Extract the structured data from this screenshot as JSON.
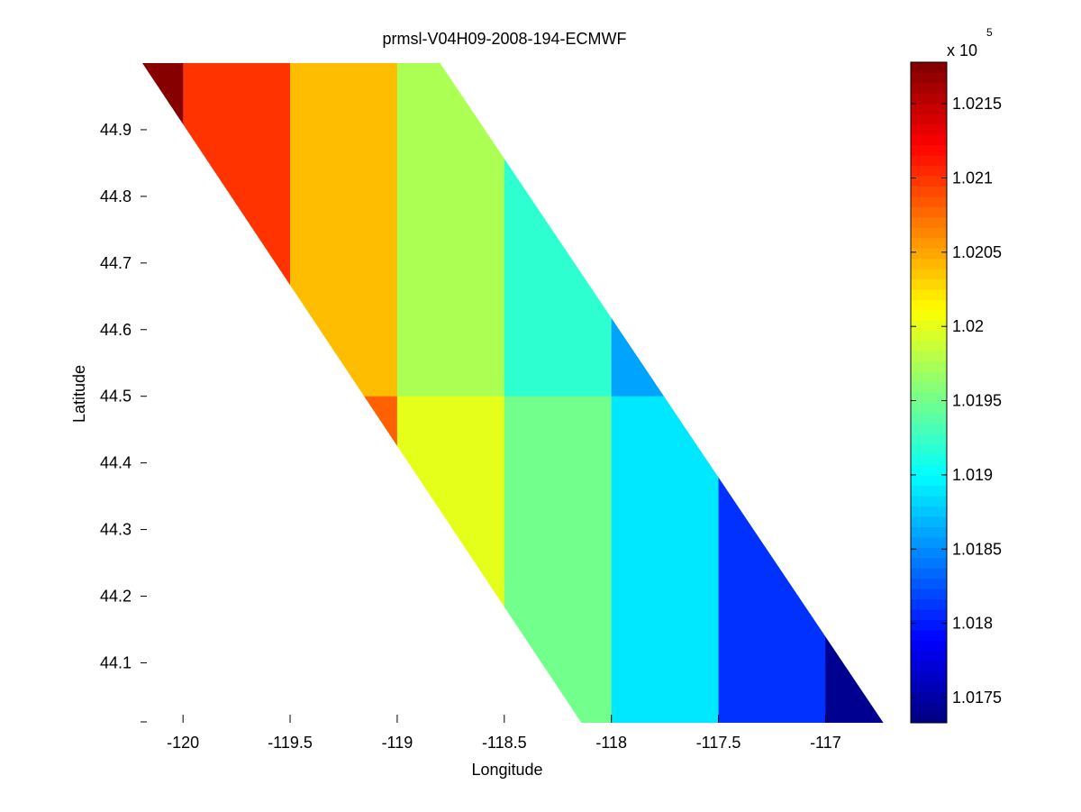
{
  "chart_data": {
    "type": "heatmap",
    "title": "prmsl-V04H09-2008-194-ECMWF",
    "xlabel": "Longitude",
    "ylabel": "Latitude",
    "xlim": [
      -120.19,
      -116.72
    ],
    "ylim": [
      44.01,
      45.0
    ],
    "x_ticks": [
      -120,
      -119.5,
      -119,
      -118.5,
      -118,
      -117.5,
      -117
    ],
    "x_tick_labels": [
      "-120",
      "-119.5",
      "-119",
      "-118.5",
      "-118",
      "-117.5",
      "-117"
    ],
    "y_ticks": [
      44.1,
      44.2,
      44.3,
      44.4,
      44.5,
      44.6,
      44.7,
      44.8,
      44.9
    ],
    "y_tick_labels": [
      "44.1",
      "44.2",
      "44.3",
      "44.4",
      "44.5",
      "44.6",
      "44.7",
      "44.8",
      "44.9"
    ],
    "swath": {
      "top_lon_range": [
        -120.19,
        -118.8
      ],
      "bottom_lon_range": [
        -118.14,
        -116.73
      ]
    },
    "cell_lon_edges": [
      -120.25,
      -120.0,
      -119.5,
      -119.0,
      -118.5,
      -118.0,
      -117.5,
      -117.0,
      -116.5
    ],
    "cell_lat_edges": [
      44.0,
      44.5,
      45.0
    ],
    "cells": [
      {
        "lon_min": -120.25,
        "lon_max": -120.0,
        "lat_min": 44.5,
        "lat_max": 45.0,
        "value": 102175
      },
      {
        "lon_min": -120.0,
        "lon_max": -119.5,
        "lat_min": 44.5,
        "lat_max": 45.0,
        "value": 102100
      },
      {
        "lon_min": -119.5,
        "lon_max": -119.0,
        "lat_min": 44.5,
        "lat_max": 45.0,
        "value": 102040
      },
      {
        "lon_min": -119.0,
        "lon_max": -118.5,
        "lat_min": 44.5,
        "lat_max": 45.0,
        "value": 101975
      },
      {
        "lon_min": -118.5,
        "lon_max": -118.0,
        "lat_min": 44.5,
        "lat_max": 45.0,
        "value": 101920
      },
      {
        "lon_min": -118.0,
        "lon_max": -117.5,
        "lat_min": 44.5,
        "lat_max": 45.0,
        "value": 101860
      },
      {
        "lon_min": -119.5,
        "lon_max": -119.0,
        "lat_min": 44.0,
        "lat_max": 44.5,
        "value": 102080
      },
      {
        "lon_min": -119.0,
        "lon_max": -118.5,
        "lat_min": 44.0,
        "lat_max": 44.5,
        "value": 102000
      },
      {
        "lon_min": -118.5,
        "lon_max": -118.0,
        "lat_min": 44.0,
        "lat_max": 44.5,
        "value": 101950
      },
      {
        "lon_min": -118.0,
        "lon_max": -117.5,
        "lat_min": 44.0,
        "lat_max": 44.5,
        "value": 101890
      },
      {
        "lon_min": -117.5,
        "lon_max": -117.0,
        "lat_min": 44.0,
        "lat_max": 44.5,
        "value": 101810
      },
      {
        "lon_min": -117.0,
        "lon_max": -116.5,
        "lat_min": 44.0,
        "lat_max": 44.5,
        "value": 101740
      }
    ],
    "colorbar": {
      "colormap": "jet",
      "vmin": 101733,
      "vmax": 102178,
      "ticks": [
        101750,
        101800,
        101850,
        101900,
        101950,
        102000,
        102050,
        102100,
        102150
      ],
      "tick_labels": [
        "1.0175",
        "1.018",
        "1.0185",
        "1.019",
        "1.0195",
        "1.02",
        "1.0205",
        "1.021",
        "1.0215"
      ],
      "exponent_label": "x 10",
      "exponent_power": "5"
    },
    "grid": false
  }
}
